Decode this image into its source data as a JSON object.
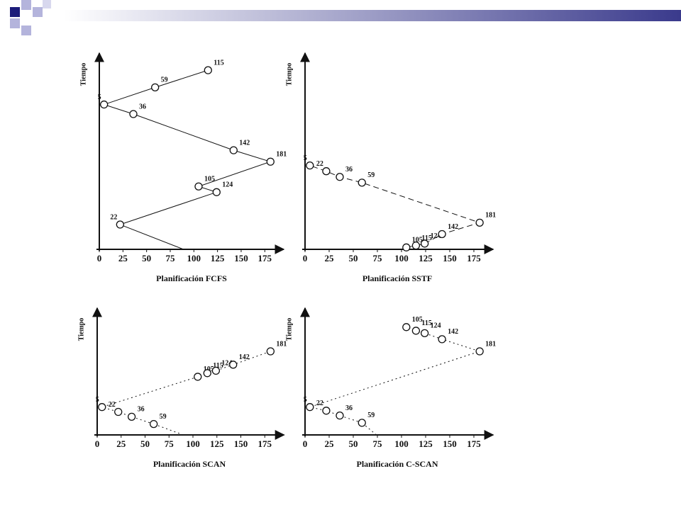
{
  "chart_data": [
    {
      "type": "line",
      "title": "Planificación FCFS",
      "ylabel": "Tiempo",
      "line_style": "solid",
      "xlim": [
        0,
        195
      ],
      "ylim": [
        0,
        100
      ],
      "xticks": [
        0,
        25,
        50,
        75,
        100,
        125,
        150,
        175
      ],
      "start": {
        "x": 89,
        "y": 0
      },
      "x": [
        22,
        124,
        105,
        181,
        142,
        36,
        5,
        59,
        115
      ],
      "y": [
        13,
        30,
        33,
        46,
        52,
        71,
        76,
        85,
        94
      ]
    },
    {
      "type": "line",
      "title": "Planificación SSTF",
      "ylabel": "Tiempo",
      "line_style": "dashed",
      "xlim": [
        0,
        195
      ],
      "ylim": [
        0,
        100
      ],
      "xticks": [
        0,
        25,
        50,
        75,
        100,
        125,
        150,
        175
      ],
      "x": [
        105,
        115,
        124,
        142,
        181,
        59,
        36,
        22,
        5
      ],
      "y": [
        1,
        2,
        3,
        8,
        14,
        35,
        38,
        41,
        44
      ]
    },
    {
      "type": "line",
      "title": "Planificación SCAN",
      "ylabel": "Tiempo",
      "line_style": "dotted",
      "xlim": [
        0,
        195
      ],
      "ylim": [
        0,
        100
      ],
      "xticks": [
        0,
        25,
        50,
        75,
        100,
        125,
        150,
        175
      ],
      "start": {
        "x": 90,
        "y": 0
      },
      "x": [
        59,
        36,
        22,
        5,
        105,
        115,
        124,
        142,
        181
      ],
      "y": [
        9,
        15,
        19,
        23,
        48,
        51,
        53,
        58,
        69
      ]
    },
    {
      "type": "line",
      "title": "Planificación C-SCAN",
      "ylabel": "Tiempo",
      "line_style": "dotted",
      "xlim": [
        0,
        195
      ],
      "ylim": [
        0,
        100
      ],
      "xticks": [
        0,
        25,
        50,
        75,
        100,
        125,
        150,
        175
      ],
      "start": {
        "x": 74,
        "y": 0
      },
      "x": [
        59,
        36,
        22,
        5,
        181,
        142,
        124,
        115,
        105
      ],
      "y": [
        10,
        16,
        20,
        23,
        69,
        79,
        84,
        86,
        89
      ]
    }
  ]
}
